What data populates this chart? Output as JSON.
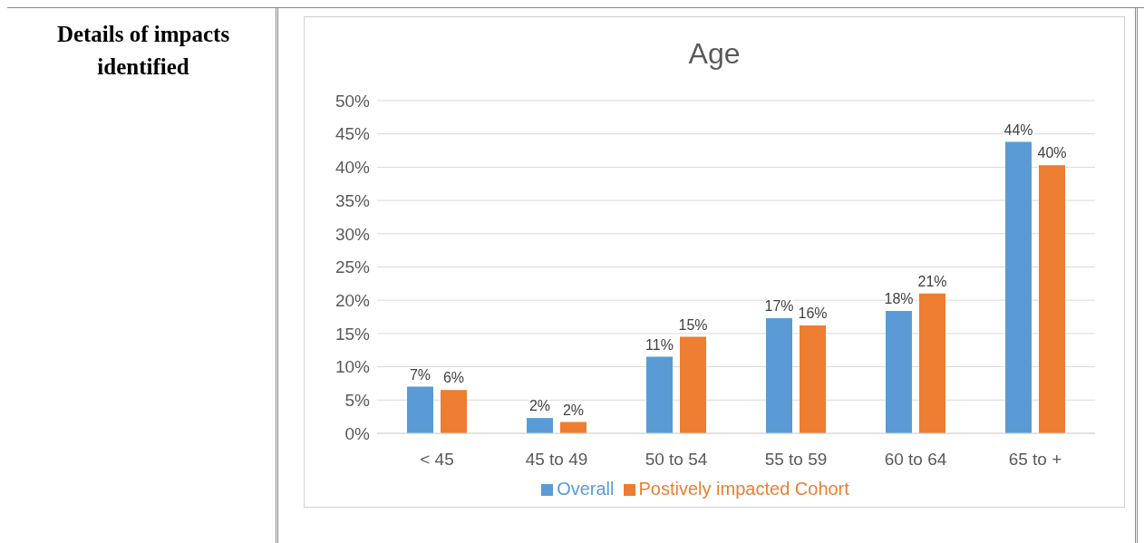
{
  "chart_data": {
    "type": "bar",
    "title": "Age",
    "annotations": [
      "Details of impacts identified"
    ],
    "categories": [
      "< 45",
      "45 to 49",
      "50 to 54",
      "55 to 59",
      "60 to 64",
      "65 to +"
    ],
    "series": [
      {
        "name": "Overall",
        "color": "#5b9bd5",
        "values": [
          7.0,
          2.3,
          11.5,
          17.3,
          18.4,
          43.8
        ],
        "value_labels": [
          "7%",
          "2%",
          "11%",
          "17%",
          "18%",
          "44%"
        ]
      },
      {
        "name": "Postively impacted Cohort",
        "color": "#ed7d31",
        "values": [
          6.5,
          1.7,
          14.5,
          16.2,
          21.0,
          40.3
        ],
        "value_labels": [
          "6%",
          "2%",
          "15%",
          "16%",
          "21%",
          "40%"
        ]
      }
    ],
    "ylim": [
      0,
      50
    ],
    "yticks": [
      {
        "value": 0,
        "label": "0%"
      },
      {
        "value": 5,
        "label": "5%"
      },
      {
        "value": 10,
        "label": "10%"
      },
      {
        "value": 15,
        "label": "15%"
      },
      {
        "value": 20,
        "label": "20%"
      },
      {
        "value": 25,
        "label": "25%"
      },
      {
        "value": 30,
        "label": "30%"
      },
      {
        "value": 35,
        "label": "35%"
      },
      {
        "value": 40,
        "label": "40%"
      },
      {
        "value": 45,
        "label": "45%"
      },
      {
        "value": 50,
        "label": "50%"
      }
    ],
    "grid": "y",
    "legend": "bottom"
  }
}
